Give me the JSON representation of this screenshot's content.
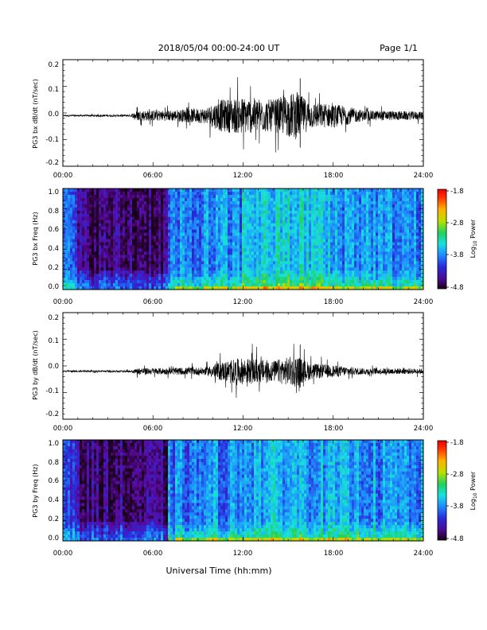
{
  "page": {
    "date_range": "2018/05/04  00:00-24:00 UT",
    "page_label": "Page 1/1",
    "x_axis_title": "Universal Time (hh:mm)"
  },
  "colors": {
    "trace": "#000000",
    "colorbar_stops": [
      "#1a0018",
      "#5a0aa0",
      "#2a2ad8",
      "#1e8cff",
      "#18e0e0",
      "#20d060",
      "#b8e000",
      "#ffb000",
      "#ff3000",
      "#e80000"
    ]
  },
  "chart_data": [
    {
      "type": "line",
      "name": "bx-dbdt",
      "ylabel": "PG3 bx dB/dt (nT/sec)",
      "x_ticks": [
        "00:00",
        "06:00",
        "12:00",
        "18:00",
        "24:00"
      ],
      "x_range_hours": [
        0,
        24
      ],
      "y_ticks": [
        "0.2",
        "0.1",
        "0.0",
        "-0.1",
        "-0.2"
      ],
      "ylim": [
        -0.2,
        0.2
      ],
      "baseline": -0.01,
      "activity_envelope": [
        {
          "t": 0,
          "amp": 0.003
        },
        {
          "t": 4.5,
          "amp": 0.004
        },
        {
          "t": 5.0,
          "amp": 0.02
        },
        {
          "t": 7.0,
          "amp": 0.02
        },
        {
          "t": 9.5,
          "amp": 0.03
        },
        {
          "t": 10.5,
          "amp": 0.06
        },
        {
          "t": 12.0,
          "amp": 0.07
        },
        {
          "t": 14.0,
          "amp": 0.06
        },
        {
          "t": 15.5,
          "amp": 0.09
        },
        {
          "t": 16.5,
          "amp": 0.05
        },
        {
          "t": 18.5,
          "amp": 0.04
        },
        {
          "t": 20.0,
          "amp": 0.02
        },
        {
          "t": 24.0,
          "amp": 0.015
        }
      ],
      "peak": {
        "t": 15.8,
        "max": 0.13,
        "min": -0.13
      }
    },
    {
      "type": "heatmap",
      "name": "bx-spectrogram",
      "ylabel": "PG3 bx Freq (Hz)",
      "x_ticks": [
        "00:00",
        "06:00",
        "12:00",
        "18:00",
        "24:00"
      ],
      "y_ticks": [
        "1.0",
        "0.8",
        "0.6",
        "0.4",
        "0.2",
        "0.0"
      ],
      "ylim": [
        0,
        1.0
      ],
      "colorbar": {
        "label": "Log10 Power",
        "ticks": [
          "-1.8",
          "-2.8",
          "-3.8",
          "-4.8"
        ],
        "range": [
          -4.8,
          -1.8
        ]
      },
      "quiet_interval_hours": [
        1.0,
        7.0
      ],
      "active_interval_hours": [
        7.0,
        24.0
      ]
    },
    {
      "type": "line",
      "name": "by-dbdt",
      "ylabel": "PG3 by dB/dt (nT/sec)",
      "x_ticks": [
        "00:00",
        "06:00",
        "12:00",
        "18:00",
        "24:00"
      ],
      "x_range_hours": [
        0,
        24
      ],
      "y_ticks": [
        "0.2",
        "0.1",
        "0.0",
        "-0.1",
        "-0.2"
      ],
      "ylim": [
        -0.2,
        0.2
      ],
      "baseline": -0.02,
      "activity_envelope": [
        {
          "t": 0,
          "amp": 0.003
        },
        {
          "t": 4.5,
          "amp": 0.004
        },
        {
          "t": 5.0,
          "amp": 0.012
        },
        {
          "t": 7.0,
          "amp": 0.012
        },
        {
          "t": 9.5,
          "amp": 0.015
        },
        {
          "t": 10.5,
          "amp": 0.035
        },
        {
          "t": 12.0,
          "amp": 0.05
        },
        {
          "t": 14.0,
          "amp": 0.04
        },
        {
          "t": 15.5,
          "amp": 0.06
        },
        {
          "t": 16.5,
          "amp": 0.03
        },
        {
          "t": 18.5,
          "amp": 0.02
        },
        {
          "t": 20.0,
          "amp": 0.012
        },
        {
          "t": 24.0,
          "amp": 0.01
        }
      ],
      "peak": {
        "t": 15.8,
        "max": 0.08,
        "min": -0.08
      }
    },
    {
      "type": "heatmap",
      "name": "by-spectrogram",
      "ylabel": "PG3 by Freq (Hz)",
      "x_ticks": [
        "00:00",
        "06:00",
        "12:00",
        "18:00",
        "24:00"
      ],
      "y_ticks": [
        "1.0",
        "0.8",
        "0.6",
        "0.4",
        "0.2",
        "0.0"
      ],
      "ylim": [
        0,
        1.0
      ],
      "colorbar": {
        "label": "Log10 Power",
        "ticks": [
          "-1.8",
          "-2.8",
          "-3.8",
          "-4.8"
        ],
        "range": [
          -4.8,
          -1.8
        ]
      },
      "quiet_interval_hours": [
        1.0,
        7.0
      ],
      "active_interval_hours": [
        7.0,
        24.0
      ]
    }
  ]
}
